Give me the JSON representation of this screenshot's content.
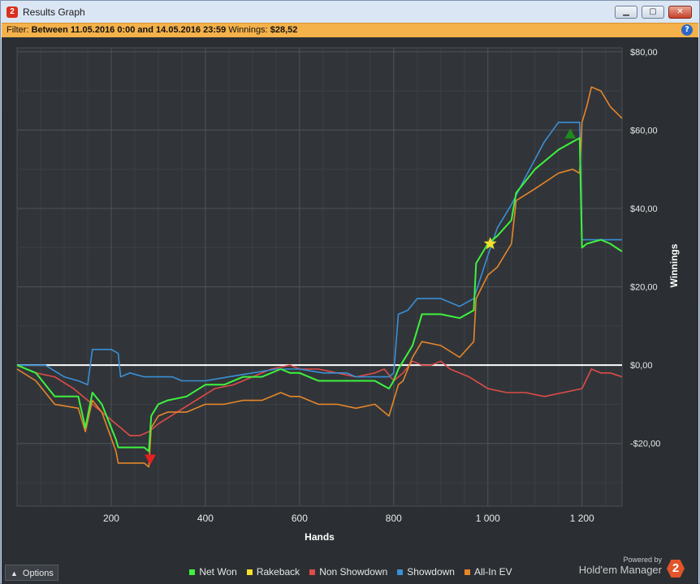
{
  "window": {
    "title": "Results Graph",
    "app_icon": "2",
    "buttons": {
      "minimize": "▁",
      "maximize": "▢",
      "close": "✕"
    }
  },
  "filter": {
    "label": "Filter:",
    "text": "Between 11.05.2016 0:00 and 14.05.2016 23:59",
    "winnings_label": "Winnings:",
    "winnings_value": "$28,52",
    "help": "?"
  },
  "footer": {
    "options_label": "Options",
    "brand_small": "Powered by",
    "brand_big": "Hold'em Manager",
    "brand_logo": "2"
  },
  "chart_data": {
    "type": "line",
    "xlabel": "Hands",
    "ylabel": "Winnings",
    "xlim": [
      0,
      1285
    ],
    "ylim": [
      -36,
      81
    ],
    "xticks": [
      200,
      400,
      600,
      800,
      1000,
      1200
    ],
    "xtick_labels": [
      "200",
      "400",
      "600",
      "800",
      "1 000",
      "1 200"
    ],
    "yticks": [
      80,
      60,
      40,
      20,
      0,
      -20
    ],
    "ytick_labels": [
      "$80,00",
      "$60,00",
      "$40,00",
      "$20,00",
      "$0,00",
      "-$20,00"
    ],
    "legend_position": "bottom",
    "series": [
      {
        "name": "Net Won",
        "color": "#3ef23e",
        "x": [
          0,
          40,
          80,
          130,
          145,
          160,
          180,
          210,
          215,
          240,
          270,
          280,
          285,
          300,
          320,
          360,
          400,
          440,
          480,
          520,
          560,
          580,
          600,
          640,
          680,
          720,
          760,
          790,
          800,
          810,
          820,
          840,
          860,
          900,
          940,
          970,
          975,
          1000,
          1020,
          1050,
          1060,
          1100,
          1150,
          1180,
          1195,
          1200,
          1210,
          1240,
          1260,
          1285
        ],
        "y": [
          0,
          -2,
          -8,
          -8,
          -16,
          -7,
          -10,
          -19,
          -21,
          -21,
          -21,
          -22,
          -13,
          -10,
          -9,
          -8,
          -5,
          -5,
          -3,
          -3,
          -1,
          -2,
          -2,
          -4,
          -4,
          -4,
          -4,
          -6,
          -4,
          -1,
          1,
          5,
          13,
          13,
          12,
          14,
          26,
          31,
          33,
          37,
          44,
          50,
          55,
          57,
          58,
          30,
          31,
          32,
          31,
          29
        ]
      },
      {
        "name": "Rakeback",
        "color": "#f5e12a",
        "x": [],
        "y": []
      },
      {
        "name": "Non Showdown",
        "color": "#e04b47",
        "x": [
          0,
          40,
          80,
          120,
          160,
          200,
          220,
          240,
          260,
          280,
          300,
          340,
          380,
          420,
          460,
          500,
          540,
          580,
          600,
          640,
          680,
          720,
          760,
          780,
          800,
          820,
          840,
          860,
          880,
          900,
          920,
          960,
          1000,
          1040,
          1080,
          1120,
          1160,
          1200,
          1220,
          1240,
          1260,
          1285
        ],
        "y": [
          0,
          -2,
          -3,
          -6,
          -10,
          -14,
          -16,
          -18,
          -18,
          -17,
          -15,
          -12,
          -9,
          -6,
          -5,
          -3,
          -1,
          0,
          -1,
          -1,
          -2,
          -3,
          -2,
          -1,
          -4,
          -2,
          1,
          0,
          0,
          1,
          -1,
          -3,
          -6,
          -7,
          -7,
          -8,
          -7,
          -6,
          -1,
          -2,
          -2,
          -3
        ]
      },
      {
        "name": "Showdown",
        "color": "#3a8fd6",
        "x": [
          0,
          60,
          100,
          130,
          150,
          160,
          170,
          200,
          215,
          220,
          240,
          270,
          300,
          330,
          350,
          400,
          450,
          500,
          550,
          600,
          650,
          700,
          720,
          780,
          790,
          800,
          810,
          830,
          850,
          900,
          940,
          970,
          1000,
          1020,
          1050,
          1080,
          1120,
          1150,
          1195,
          1200,
          1260,
          1285
        ],
        "y": [
          0,
          0,
          -3,
          -4,
          -5,
          4,
          4,
          4,
          3,
          -3,
          -2,
          -3,
          -3,
          -3,
          -4,
          -4,
          -3,
          -2,
          -1,
          -1,
          -2,
          -2,
          -3,
          -3,
          -3,
          -2,
          13,
          14,
          17,
          17,
          15,
          17,
          28,
          35,
          41,
          48,
          57,
          62,
          62,
          32,
          32,
          32
        ]
      },
      {
        "name": "All-In EV",
        "color": "#e6862a",
        "x": [
          0,
          40,
          80,
          130,
          145,
          160,
          180,
          210,
          215,
          240,
          270,
          280,
          285,
          300,
          320,
          360,
          400,
          440,
          480,
          520,
          560,
          580,
          600,
          640,
          680,
          720,
          760,
          790,
          800,
          810,
          820,
          840,
          860,
          900,
          940,
          970,
          975,
          1000,
          1020,
          1050,
          1060,
          1100,
          1150,
          1180,
          1195,
          1200,
          1210,
          1220,
          1240,
          1260,
          1285
        ],
        "y": [
          -1,
          -4,
          -10,
          -11,
          -17,
          -9,
          -12,
          -22,
          -25,
          -25,
          -25,
          -26,
          -16,
          -13,
          -12,
          -12,
          -10,
          -10,
          -9,
          -9,
          -7,
          -8,
          -8,
          -10,
          -10,
          -11,
          -10,
          -13,
          -9,
          -5,
          -4,
          2,
          6,
          5,
          2,
          6,
          17,
          23,
          25,
          31,
          42,
          45,
          49,
          50,
          49,
          62,
          66,
          71,
          70,
          66,
          63
        ]
      }
    ],
    "markers": [
      {
        "kind": "triangle-down",
        "color": "#e81f1f",
        "x": 283,
        "y": -24
      },
      {
        "kind": "triangle-up",
        "color": "#1f8a1f",
        "x": 1175,
        "y": 59
      },
      {
        "kind": "star",
        "color": "#f5e12a",
        "x": 1005,
        "y": 31
      }
    ]
  }
}
